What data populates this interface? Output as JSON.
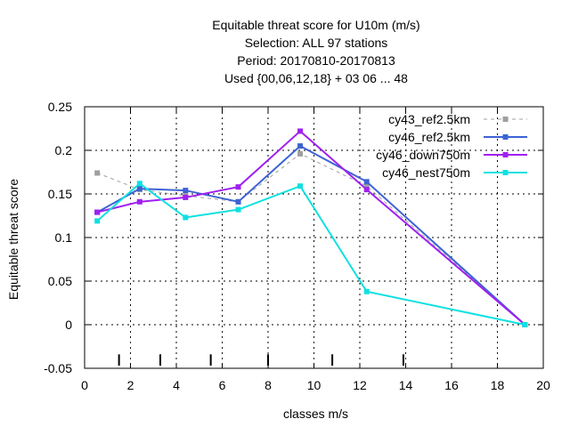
{
  "title_lines": [
    "Equitable threat score  for U10m (m/s)",
    "Selection: ALL     97 stations",
    "Period: 20170810-20170813",
    "Used {00,06,12,18} + 03 06 ... 48"
  ],
  "chart_data": {
    "type": "line",
    "xlabel": "classes m/s",
    "ylabel": "Equitable threat score",
    "xlim": [
      0,
      20
    ],
    "ylim": [
      -0.05,
      0.25
    ],
    "xticks": [
      0,
      2,
      4,
      6,
      8,
      10,
      12,
      14,
      16,
      18,
      20
    ],
    "xtick_labels": [
      "0",
      "2",
      "4",
      "6",
      "8",
      "10",
      "12",
      "14",
      "16",
      "18",
      "20"
    ],
    "yticks": [
      -0.05,
      0,
      0.05,
      0.1,
      0.15,
      0.2,
      0.25
    ],
    "ytick_labels": [
      "-0.05",
      "0",
      "0.05",
      "0.1",
      "0.15",
      "0.2",
      "0.25"
    ],
    "grid": true,
    "legend_position": "top-right",
    "class_markers": [
      1.5,
      3.3,
      5.5,
      8.0,
      10.8,
      13.9
    ],
    "series": [
      {
        "name": "cy43_ref2.5km",
        "color": "#a0a0a0",
        "dashed": true,
        "x": [
          0.55,
          2.4,
          4.4,
          6.7,
          9.4,
          12.3,
          19.2
        ],
        "y": [
          0.174,
          0.155,
          0.148,
          0.141,
          0.196,
          0.159,
          0.0
        ]
      },
      {
        "name": "cy46_ref2.5km",
        "color": "#3d63d3",
        "dashed": false,
        "x": [
          0.55,
          2.4,
          4.4,
          6.7,
          9.4,
          12.3,
          19.2
        ],
        "y": [
          0.129,
          0.156,
          0.154,
          0.141,
          0.205,
          0.164,
          0.0
        ]
      },
      {
        "name": "cy46_down750m",
        "color": "#a020f0",
        "dashed": false,
        "x": [
          0.55,
          2.4,
          4.4,
          6.7,
          9.4,
          12.3,
          19.2
        ],
        "y": [
          0.129,
          0.141,
          0.146,
          0.158,
          0.222,
          0.155,
          0.0
        ]
      },
      {
        "name": "cy46_nest750m",
        "color": "#10e0e0",
        "dashed": false,
        "x": [
          0.55,
          2.4,
          4.4,
          6.7,
          9.4,
          12.3,
          19.2
        ],
        "y": [
          0.119,
          0.162,
          0.123,
          0.132,
          0.159,
          0.038,
          0.0
        ]
      }
    ]
  }
}
